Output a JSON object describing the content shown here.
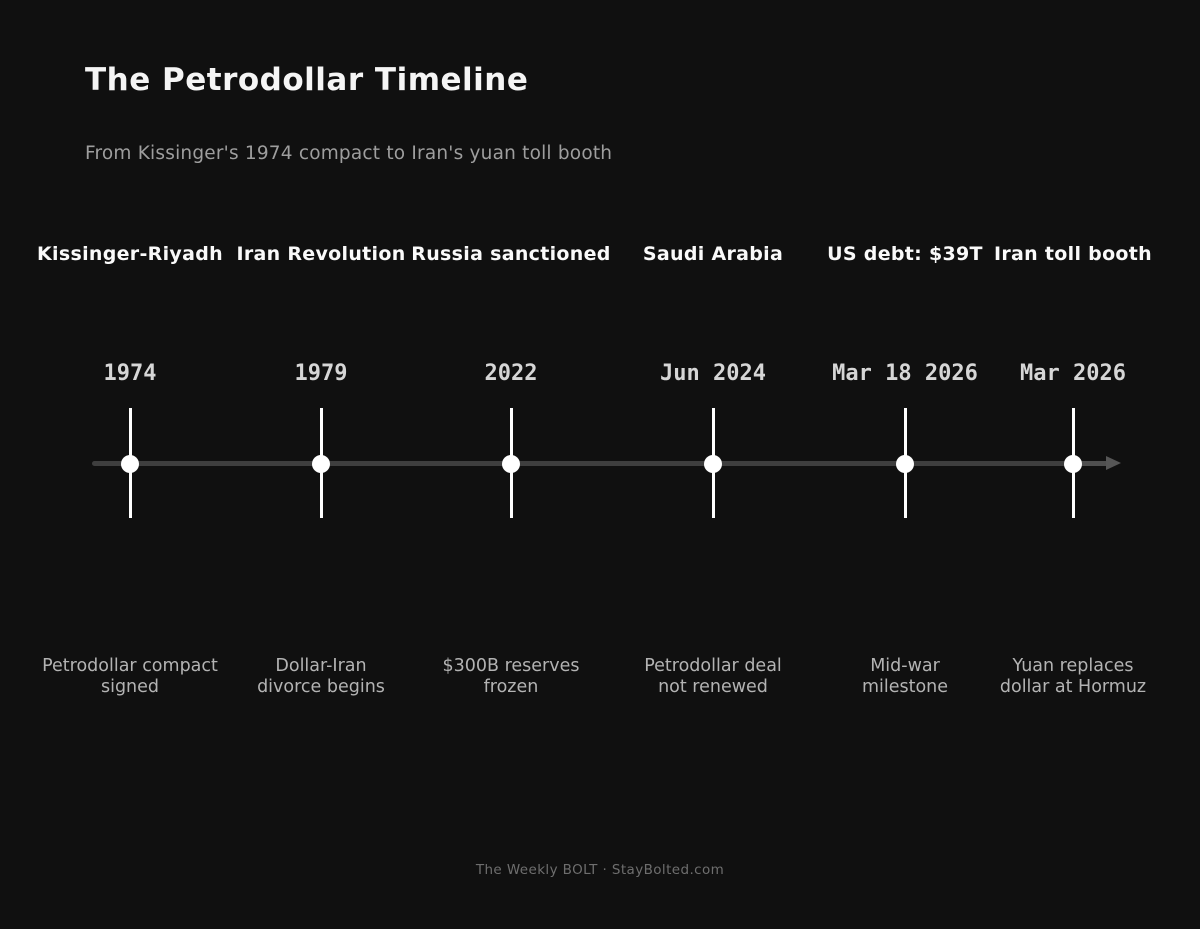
{
  "colors": {
    "background": "#101010",
    "title": "#f5f5f5",
    "subtitle": "#9e9e9e",
    "event_title": "#fafafa",
    "event_date": "#d6d6d6",
    "event_description": "#b3b3b3",
    "timeline_line": "#3e3e3e",
    "timeline_arrow": "#565656",
    "node_and_tick": "#ffffff",
    "footer": "#6e6e6e"
  },
  "header": {
    "title": "The Petrodollar Timeline",
    "subtitle": "From Kissinger's 1974 compact to Iran's yuan toll booth"
  },
  "events": [
    {
      "title": "Kissinger-Riyadh",
      "date": "1974",
      "desc": [
        "Petrodollar compact",
        "signed"
      ]
    },
    {
      "title": "Iran Revolution",
      "date": "1979",
      "desc": [
        "Dollar-Iran",
        "divorce begins"
      ]
    },
    {
      "title": "Russia sanctioned",
      "date": "2022",
      "desc": [
        "$300B reserves",
        "frozen"
      ]
    },
    {
      "title": "Saudi Arabia",
      "date": "Jun 2024",
      "desc": [
        "Petrodollar deal",
        "not renewed"
      ]
    },
    {
      "title": "US debt: $39T",
      "date": "Mar 18 2026",
      "desc": [
        "Mid-war",
        "milestone"
      ]
    },
    {
      "title": "Iran toll booth",
      "date": "Mar 2026",
      "desc": [
        "Yuan replaces",
        "dollar at Hormuz"
      ]
    }
  ],
  "footer": {
    "text": "The Weekly BOLT  ·  StayBolted.com"
  },
  "chart_data": {
    "type": "timeline",
    "orientation": "horizontal",
    "arrow_direction": "right",
    "title": "The Petrodollar Timeline",
    "subtitle": "From Kissinger's 1974 compact to Iran's yuan toll booth",
    "events": [
      {
        "label": "Kissinger-Riyadh",
        "date": "1974",
        "description": "Petrodollar compact signed"
      },
      {
        "label": "Iran Revolution",
        "date": "1979",
        "description": "Dollar-Iran divorce begins"
      },
      {
        "label": "Russia sanctioned",
        "date": "2022",
        "description": "$300B reserves frozen"
      },
      {
        "label": "Saudi Arabia",
        "date": "Jun 2024",
        "description": "Petrodollar deal not renewed"
      },
      {
        "label": "US debt: $39T",
        "date": "Mar 18 2026",
        "description": "Mid-war milestone"
      },
      {
        "label": "Iran toll booth",
        "date": "Mar 2026",
        "description": "Yuan replaces dollar at Hormuz"
      }
    ],
    "footer": "The Weekly BOLT · StayBolted.com"
  }
}
